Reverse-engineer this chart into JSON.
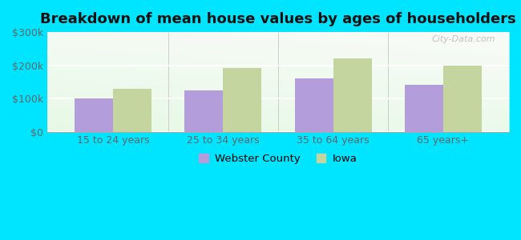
{
  "title": "Breakdown of mean house values by ages of householders",
  "categories": [
    "15 to 24 years",
    "25 to 34 years",
    "35 to 64 years",
    "65 years+"
  ],
  "webster_values": [
    100000,
    125000,
    160000,
    140000
  ],
  "iowa_values": [
    130000,
    193000,
    220000,
    200000
  ],
  "webster_color": "#b39ddb",
  "iowa_color": "#c5d5a0",
  "ylim": [
    0,
    300000
  ],
  "yticks": [
    0,
    100000,
    200000,
    300000
  ],
  "ytick_labels": [
    "$0",
    "$100k",
    "$200k",
    "$300k"
  ],
  "outer_bg": "#00e5ff",
  "bar_width": 0.35,
  "legend_labels": [
    "Webster County",
    "Iowa"
  ],
  "watermark": "City-Data.com",
  "title_fontsize": 13,
  "tick_fontsize": 9
}
